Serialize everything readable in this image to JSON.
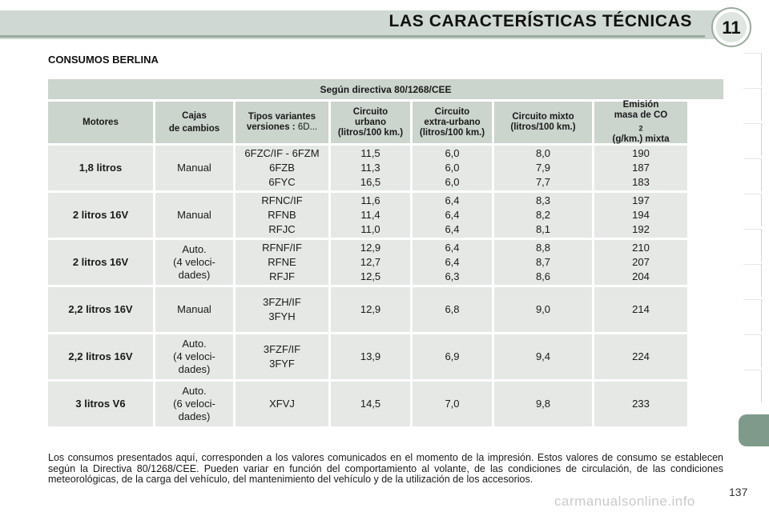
{
  "header": {
    "title": "LAS CARACTERÍSTICAS TÉCNICAS",
    "chapter_number": "11"
  },
  "section_title": "CONSUMOS BERLINA",
  "table": {
    "title": "Según directiva 80/1268/CEE",
    "columns": {
      "motores": "Motores",
      "cajas": [
        "Cajas",
        "de cambios"
      ],
      "tipos": {
        "bold": "Tipos variantes versiones :",
        "suffix": " 6D..."
      },
      "urbano": [
        "Circuito",
        "urbano",
        "(litros/100 km.)"
      ],
      "extra": [
        "Circuito",
        "extra-urbano",
        "(litros/100 km.)"
      ],
      "mixto": [
        "Circuito mixto",
        "(litros/100 km.)"
      ],
      "emision": {
        "line1": "Emisión",
        "line2": "masa de CO",
        "sub": "2",
        "line3": "(g/km.) mixta"
      }
    },
    "rows": [
      {
        "motor": "1,8 litros",
        "caja": [
          "Manual"
        ],
        "tipos": [
          "6FZC/IF - 6FZM",
          "6FZB",
          "6FYC"
        ],
        "urbano": [
          "11,5",
          "11,3",
          "16,5"
        ],
        "extra": [
          "6,0",
          "6,0",
          "6,0"
        ],
        "mixto": [
          "8,0",
          "7,9",
          "7,7"
        ],
        "co2": [
          "190",
          "187",
          "183"
        ]
      },
      {
        "motor": "2 litros 16V",
        "caja": [
          "Manual"
        ],
        "tipos": [
          "RFNC/IF",
          "RFNB",
          "RFJC"
        ],
        "urbano": [
          "11,6",
          "11,4",
          "11,0"
        ],
        "extra": [
          "6,4",
          "6,4",
          "6,4"
        ],
        "mixto": [
          "8,3",
          "8,2",
          "8,1"
        ],
        "co2": [
          "197",
          "194",
          "192"
        ]
      },
      {
        "motor": "2 litros 16V",
        "caja": [
          "Auto.",
          "(4 veloci-",
          "dades)"
        ],
        "tipos": [
          "RFNF/IF",
          "RFNE",
          "RFJF"
        ],
        "urbano": [
          "12,9",
          "12,7",
          "12,5"
        ],
        "extra": [
          "6,4",
          "6,4",
          "6,3"
        ],
        "mixto": [
          "8,8",
          "8,7",
          "8,6"
        ],
        "co2": [
          "210",
          "207",
          "204"
        ]
      },
      {
        "motor": "2,2 litros 16V",
        "caja": [
          "Manual"
        ],
        "tipos": [
          "3FZH/IF",
          "3FYH"
        ],
        "urbano": [
          "12,9"
        ],
        "extra": [
          "6,8"
        ],
        "mixto": [
          "9,0"
        ],
        "co2": [
          "214"
        ]
      },
      {
        "motor": "2,2 litros 16V",
        "caja": [
          "Auto.",
          "(4 veloci-",
          "dades)"
        ],
        "tipos": [
          "3FZF/IF",
          "3FYF"
        ],
        "urbano": [
          "13,9"
        ],
        "extra": [
          "6,9"
        ],
        "mixto": [
          "9,4"
        ],
        "co2": [
          "224"
        ]
      },
      {
        "motor": "3 litros V6",
        "caja": [
          "Auto.",
          "(6 veloci-",
          "dades)"
        ],
        "tipos": [
          "XFVJ"
        ],
        "urbano": [
          "14,5"
        ],
        "extra": [
          "7,0"
        ],
        "mixto": [
          "9,8"
        ],
        "co2": [
          "233"
        ]
      }
    ]
  },
  "footnote": "Los consumos presentados aquí, corresponden a los valores comunicados en el momento de la impresión. Estos valores de consumo se establecen según la Directiva 80/1268/CEE. Pueden variar en función del comportamiento al volante, de las condiciones de circulación, de las condiciones meteorológicas, de la carga del vehículo, del mantenimiento del vehículo y de la utilización de los accesorios.",
  "page_number": "137",
  "watermark": "carmanualsonline.info",
  "colors": {
    "header_band": "#cfd8d2",
    "table_header": "#cbd4cd",
    "table_cell": "#e5e8e5",
    "tab_accent": "#7f9a8a"
  }
}
